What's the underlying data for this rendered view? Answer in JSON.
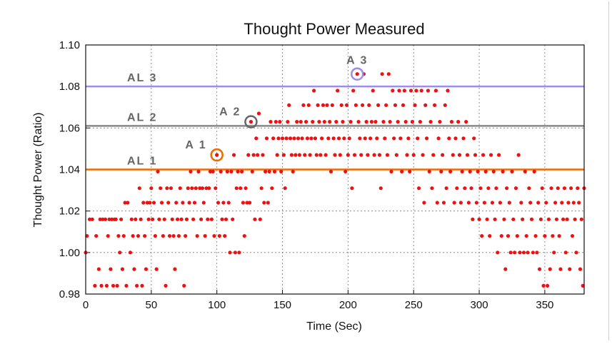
{
  "chart_data": {
    "type": "scatter",
    "title": "Thought Power Measured",
    "xlabel": "Time (Sec)",
    "ylabel": "Thought Power (Ratio)",
    "xlim": [
      0,
      380
    ],
    "ylim": [
      0.98,
      1.1
    ],
    "x_ticks": [
      "0",
      "50",
      "100",
      "150",
      "200",
      "250",
      "300",
      "350"
    ],
    "y_ticks": [
      "0.98",
      "1.00",
      "1.02",
      "1.04",
      "1.06",
      "1.08",
      "1.10"
    ],
    "grid": true,
    "colors": {
      "points": "#ee1111",
      "AL1": "#ee6a00",
      "AL2": "#888888",
      "AL3": "#9b8cf0"
    },
    "alert_levels": [
      {
        "name": "AL 3",
        "y": 1.08
      },
      {
        "name": "AL 2",
        "y": 1.061
      },
      {
        "name": "AL 1",
        "y": 1.04
      }
    ],
    "annotations": [
      {
        "label": "A 1",
        "x": 100,
        "y": 1.047,
        "color": "#ee6a00"
      },
      {
        "label": "A 2",
        "x": 126,
        "y": 1.063,
        "color": "#666666"
      },
      {
        "label": "A 3",
        "x": 207,
        "y": 1.086,
        "color": "#9b8cf0"
      }
    ],
    "points": [
      [
        0,
        1.0
      ],
      [
        1,
        1.008
      ],
      [
        3,
        1.016
      ],
      [
        5,
        1.016
      ],
      [
        7,
        0.984
      ],
      [
        8,
        1.008
      ],
      [
        10,
        0.992
      ],
      [
        11,
        1.016
      ],
      [
        12,
        0.984
      ],
      [
        13,
        1.016
      ],
      [
        15,
        1.016
      ],
      [
        16,
        0.984
      ],
      [
        17,
        1.008
      ],
      [
        18,
        1.016
      ],
      [
        19,
        0.992
      ],
      [
        20,
        1.016
      ],
      [
        21,
        0.984
      ],
      [
        22,
        1.016
      ],
      [
        23,
        1.016
      ],
      [
        24,
        0.984
      ],
      [
        25,
        1.008
      ],
      [
        26,
        1.0
      ],
      [
        27,
        1.016
      ],
      [
        28,
        0.992
      ],
      [
        29,
        1.008
      ],
      [
        30,
        1.024
      ],
      [
        31,
        0.984
      ],
      [
        32,
        1.024
      ],
      [
        34,
        1.0
      ],
      [
        35,
        1.016
      ],
      [
        36,
        1.008
      ],
      [
        37,
        0.992
      ],
      [
        38,
        1.016
      ],
      [
        39,
        0.984
      ],
      [
        40,
        1.008
      ],
      [
        41,
        1.031
      ],
      [
        42,
        1.016
      ],
      [
        43,
        0.984
      ],
      [
        44,
        1.024
      ],
      [
        45,
        1.008
      ],
      [
        46,
        0.992
      ],
      [
        47,
        1.024
      ],
      [
        48,
        1.016
      ],
      [
        49,
        1.024
      ],
      [
        50,
        1.031
      ],
      [
        51,
        1.016
      ],
      [
        52,
        1.024
      ],
      [
        53,
        1.008
      ],
      [
        54,
        0.992
      ],
      [
        55,
        1.039
      ],
      [
        56,
        1.016
      ],
      [
        57,
        1.031
      ],
      [
        58,
        1.024
      ],
      [
        59,
        1.008
      ],
      [
        60,
        1.016
      ],
      [
        61,
        0.984
      ],
      [
        62,
        1.031
      ],
      [
        63,
        1.024
      ],
      [
        64,
        1.008
      ],
      [
        65,
        1.031
      ],
      [
        66,
        1.016
      ],
      [
        67,
        1.008
      ],
      [
        68,
        0.992
      ],
      [
        69,
        1.024
      ],
      [
        70,
        1.016
      ],
      [
        71,
        1.008
      ],
      [
        72,
        1.031
      ],
      [
        73,
        1.016
      ],
      [
        74,
        1.024
      ],
      [
        75,
        0.984
      ],
      [
        76,
        1.008
      ],
      [
        77,
        1.016
      ],
      [
        78,
        1.031
      ],
      [
        79,
        1.024
      ],
      [
        80,
        1.039
      ],
      [
        81,
        1.031
      ],
      [
        82,
        1.016
      ],
      [
        83,
        1.024
      ],
      [
        84,
        1.031
      ],
      [
        85,
        1.008
      ],
      [
        86,
        1.039
      ],
      [
        87,
        1.031
      ],
      [
        88,
        1.016
      ],
      [
        89,
        1.031
      ],
      [
        90,
        1.024
      ],
      [
        91,
        1.008
      ],
      [
        92,
        1.031
      ],
      [
        93,
        1.016
      ],
      [
        94,
        1.031
      ],
      [
        95,
        1.039
      ],
      [
        96,
        1.016
      ],
      [
        97,
        1.039
      ],
      [
        98,
        1.008
      ],
      [
        99,
        1.031
      ],
      [
        100,
        1.047
      ],
      [
        101,
        1.024
      ],
      [
        102,
        1.008
      ],
      [
        103,
        1.039
      ],
      [
        104,
        1.016
      ],
      [
        105,
        1.024
      ],
      [
        106,
        1.008
      ],
      [
        107,
        1.016
      ],
      [
        108,
        1.039
      ],
      [
        109,
        1.024
      ],
      [
        110,
        1.0
      ],
      [
        111,
        1.039
      ],
      [
        112,
        1.016
      ],
      [
        113,
        1.047
      ],
      [
        114,
        1.0
      ],
      [
        115,
        1.031
      ],
      [
        116,
        1.039
      ],
      [
        117,
        1.0
      ],
      [
        118,
        1.031
      ],
      [
        119,
        1.039
      ],
      [
        120,
        1.024
      ],
      [
        121,
        1.008
      ],
      [
        122,
        1.031
      ],
      [
        123,
        1.024
      ],
      [
        124,
        1.047
      ],
      [
        125,
        1.024
      ],
      [
        126,
        1.063
      ],
      [
        127,
        1.039
      ],
      [
        128,
        1.047
      ],
      [
        129,
        1.016
      ],
      [
        130,
        1.055
      ],
      [
        131,
        1.047
      ],
      [
        132,
        1.067
      ],
      [
        133,
        1.016
      ],
      [
        134,
        1.031
      ],
      [
        135,
        1.047
      ],
      [
        136,
        1.024
      ],
      [
        137,
        1.039
      ],
      [
        138,
        1.055
      ],
      [
        139,
        1.024
      ],
      [
        140,
        1.039
      ],
      [
        141,
        1.063
      ],
      [
        142,
        1.031
      ],
      [
        143,
        1.055
      ],
      [
        144,
        1.039
      ],
      [
        145,
        1.063
      ],
      [
        146,
        1.047
      ],
      [
        147,
        1.055
      ],
      [
        148,
        1.063
      ],
      [
        149,
        1.039
      ],
      [
        150,
        1.055
      ],
      [
        151,
        1.047
      ],
      [
        152,
        1.031
      ],
      [
        153,
        1.055
      ],
      [
        154,
        1.063
      ],
      [
        155,
        1.071
      ],
      [
        156,
        1.055
      ],
      [
        157,
        1.047
      ],
      [
        158,
        1.039
      ],
      [
        159,
        1.055
      ],
      [
        160,
        1.047
      ],
      [
        161,
        1.063
      ],
      [
        162,
        1.055
      ],
      [
        163,
        1.047
      ],
      [
        164,
        1.063
      ],
      [
        165,
        1.055
      ],
      [
        166,
        1.071
      ],
      [
        167,
        1.047
      ],
      [
        168,
        1.063
      ],
      [
        169,
        1.055
      ],
      [
        170,
        1.071
      ],
      [
        171,
        1.047
      ],
      [
        172,
        1.055
      ],
      [
        173,
        1.063
      ],
      [
        174,
        1.078
      ],
      [
        175,
        1.055
      ],
      [
        176,
        1.047
      ],
      [
        177,
        1.071
      ],
      [
        178,
        1.063
      ],
      [
        179,
        1.047
      ],
      [
        180,
        1.055
      ],
      [
        181,
        1.071
      ],
      [
        182,
        1.063
      ],
      [
        183,
        1.047
      ],
      [
        184,
        1.071
      ],
      [
        185,
        1.055
      ],
      [
        186,
        1.063
      ],
      [
        187,
        1.039
      ],
      [
        188,
        1.071
      ],
      [
        189,
        1.055
      ],
      [
        190,
        1.047
      ],
      [
        191,
        1.063
      ],
      [
        192,
        1.078
      ],
      [
        193,
        1.055
      ],
      [
        194,
        1.047
      ],
      [
        195,
        1.071
      ],
      [
        196,
        1.063
      ],
      [
        197,
        1.055
      ],
      [
        198,
        1.039
      ],
      [
        199,
        1.071
      ],
      [
        200,
        1.047
      ],
      [
        201,
        1.055
      ],
      [
        202,
        1.063
      ],
      [
        203,
        1.031
      ],
      [
        204,
        1.078
      ],
      [
        205,
        1.047
      ],
      [
        206,
        1.071
      ],
      [
        207,
        1.086
      ],
      [
        208,
        1.063
      ],
      [
        209,
        1.055
      ],
      [
        210,
        1.047
      ],
      [
        211,
        1.071
      ],
      [
        212,
        1.086
      ],
      [
        213,
        1.055
      ],
      [
        214,
        1.063
      ],
      [
        215,
        1.047
      ],
      [
        216,
        1.071
      ],
      [
        217,
        1.055
      ],
      [
        218,
        1.063
      ],
      [
        219,
        1.078
      ],
      [
        220,
        1.047
      ],
      [
        221,
        1.063
      ],
      [
        222,
        1.055
      ],
      [
        223,
        1.071
      ],
      [
        224,
        1.047
      ],
      [
        225,
        1.031
      ],
      [
        226,
        1.086
      ],
      [
        227,
        1.063
      ],
      [
        228,
        1.055
      ],
      [
        229,
        1.071
      ],
      [
        230,
        1.047
      ],
      [
        231,
        1.086
      ],
      [
        232,
        1.063
      ],
      [
        233,
        1.039
      ],
      [
        234,
        1.078
      ],
      [
        235,
        1.055
      ],
      [
        236,
        1.071
      ],
      [
        237,
        1.047
      ],
      [
        238,
        1.063
      ],
      [
        239,
        1.078
      ],
      [
        240,
        1.055
      ],
      [
        241,
        1.039
      ],
      [
        242,
        1.071
      ],
      [
        243,
        1.078
      ],
      [
        244,
        1.063
      ],
      [
        245,
        1.047
      ],
      [
        246,
        1.055
      ],
      [
        247,
        1.039
      ],
      [
        248,
        1.078
      ],
      [
        249,
        1.063
      ],
      [
        250,
        1.047
      ],
      [
        251,
        1.071
      ],
      [
        252,
        1.078
      ],
      [
        253,
        1.055
      ],
      [
        254,
        1.031
      ],
      [
        255,
        1.063
      ],
      [
        256,
        1.078
      ],
      [
        257,
        1.047
      ],
      [
        258,
        1.024
      ],
      [
        259,
        1.071
      ],
      [
        260,
        1.055
      ],
      [
        261,
        1.078
      ],
      [
        262,
        1.039
      ],
      [
        263,
        1.063
      ],
      [
        264,
        1.031
      ],
      [
        265,
        1.047
      ],
      [
        266,
        1.071
      ],
      [
        267,
        1.078
      ],
      [
        268,
        1.024
      ],
      [
        269,
        1.055
      ],
      [
        270,
        1.063
      ],
      [
        271,
        1.039
      ],
      [
        272,
        1.047
      ],
      [
        273,
        1.024
      ],
      [
        274,
        1.071
      ],
      [
        275,
        1.031
      ],
      [
        276,
        1.078
      ],
      [
        277,
        1.055
      ],
      [
        278,
        1.039
      ],
      [
        279,
        1.063
      ],
      [
        280,
        1.047
      ],
      [
        281,
        1.024
      ],
      [
        282,
        1.055
      ],
      [
        283,
        1.031
      ],
      [
        284,
        1.063
      ],
      [
        285,
        1.047
      ],
      [
        286,
        1.024
      ],
      [
        287,
        1.039
      ],
      [
        288,
        1.055
      ],
      [
        289,
        1.031
      ],
      [
        290,
        1.063
      ],
      [
        291,
        1.047
      ],
      [
        292,
        1.024
      ],
      [
        293,
        1.039
      ],
      [
        294,
        1.031
      ],
      [
        295,
        1.016
      ],
      [
        296,
        1.055
      ],
      [
        297,
        1.047
      ],
      [
        298,
        1.024
      ],
      [
        299,
        1.039
      ],
      [
        300,
        1.016
      ],
      [
        301,
        1.031
      ],
      [
        302,
        1.008
      ],
      [
        303,
        1.047
      ],
      [
        304,
        1.024
      ],
      [
        305,
        1.039
      ],
      [
        306,
        1.016
      ],
      [
        307,
        1.031
      ],
      [
        308,
        1.008
      ],
      [
        309,
        1.047
      ],
      [
        310,
        1.024
      ],
      [
        311,
        1.039
      ],
      [
        312,
        1.016
      ],
      [
        313,
        1.031
      ],
      [
        314,
        1.0
      ],
      [
        315,
        1.047
      ],
      [
        316,
        1.024
      ],
      [
        317,
        1.008
      ],
      [
        318,
        1.039
      ],
      [
        319,
        1.016
      ],
      [
        320,
        0.992
      ],
      [
        321,
        1.031
      ],
      [
        322,
        1.008
      ],
      [
        323,
        1.024
      ],
      [
        324,
        1.0
      ],
      [
        325,
        1.039
      ],
      [
        326,
        1.016
      ],
      [
        327,
        1.0
      ],
      [
        328,
        1.031
      ],
      [
        329,
        1.008
      ],
      [
        330,
        1.047
      ],
      [
        331,
        1.0
      ],
      [
        332,
        1.024
      ],
      [
        333,
        1.016
      ],
      [
        334,
        1.0
      ],
      [
        335,
        1.039
      ],
      [
        336,
        1.008
      ],
      [
        337,
        1.0
      ],
      [
        338,
        1.031
      ],
      [
        339,
        1.024
      ],
      [
        340,
        1.016
      ],
      [
        341,
        1.0
      ],
      [
        342,
        1.039
      ],
      [
        343,
        1.008
      ],
      [
        344,
        1.0
      ],
      [
        345,
        1.024
      ],
      [
        346,
        0.992
      ],
      [
        347,
        1.016
      ],
      [
        348,
        1.031
      ],
      [
        349,
        0.984
      ],
      [
        350,
        1.008
      ],
      [
        351,
        1.024
      ],
      [
        352,
        0.984
      ],
      [
        353,
        1.016
      ],
      [
        354,
        0.992
      ],
      [
        355,
        1.031
      ],
      [
        356,
        1.008
      ],
      [
        357,
        1.0
      ],
      [
        358,
        1.024
      ],
      [
        359,
        1.016
      ],
      [
        360,
        1.031
      ],
      [
        361,
        1.008
      ],
      [
        362,
        0.992
      ],
      [
        363,
        1.024
      ],
      [
        364,
        1.016
      ],
      [
        365,
        1.031
      ],
      [
        366,
        1.0
      ],
      [
        367,
        1.016
      ],
      [
        368,
        1.024
      ],
      [
        369,
        0.992
      ],
      [
        370,
        1.031
      ],
      [
        371,
        1.008
      ],
      [
        372,
        1.024
      ],
      [
        373,
        1.016
      ],
      [
        374,
        1.0
      ],
      [
        375,
        1.031
      ],
      [
        376,
        1.024
      ],
      [
        377,
        0.992
      ],
      [
        378,
        1.016
      ],
      [
        379,
        0.984
      ],
      [
        380,
        1.031
      ]
    ]
  }
}
